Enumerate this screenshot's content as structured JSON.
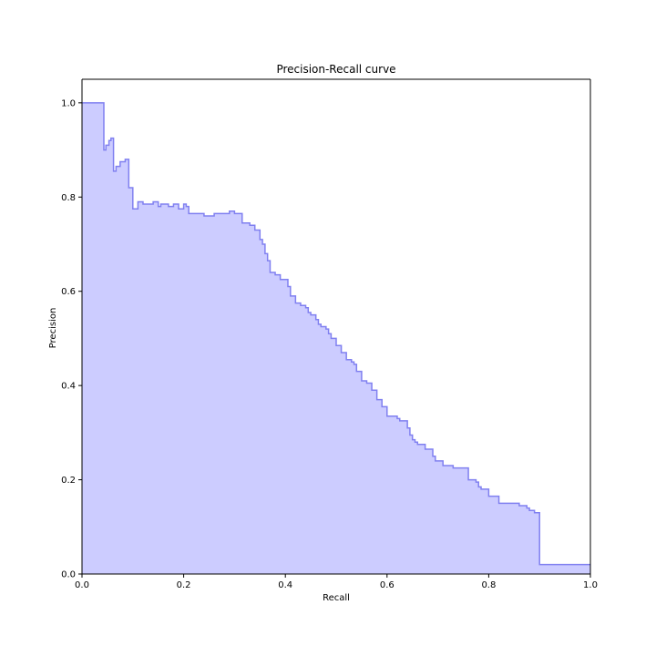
{
  "chart_data": {
    "type": "area",
    "title": "Precision-Recall curve",
    "xlabel": "Recall",
    "ylabel": "Precision",
    "xlim": [
      0.0,
      1.0
    ],
    "ylim": [
      0.0,
      1.05
    ],
    "xticks": [
      0.0,
      0.2,
      0.4,
      0.6,
      0.8,
      1.0
    ],
    "yticks": [
      0.0,
      0.2,
      0.4,
      0.6,
      0.8,
      1.0
    ],
    "xtick_labels": [
      "0.0",
      "0.2",
      "0.4",
      "0.6",
      "0.8",
      "1.0"
    ],
    "ytick_labels": [
      "0.0",
      "0.2",
      "0.4",
      "0.6",
      "0.8",
      "1.0"
    ],
    "grid": false,
    "step": "post",
    "fill_color": "#ccccff",
    "line_color": "#8080f0",
    "series": [
      {
        "recall": [
          0.0,
          0.043,
          0.043,
          0.047,
          0.053,
          0.057,
          0.062,
          0.067,
          0.067,
          0.075,
          0.075,
          0.085,
          0.092,
          0.1,
          0.1,
          0.11,
          0.11,
          0.116,
          0.12,
          0.14,
          0.15,
          0.155,
          0.16,
          0.17,
          0.175,
          0.18,
          0.185,
          0.19,
          0.2,
          0.205,
          0.21,
          0.22,
          0.225,
          0.24,
          0.25,
          0.26,
          0.27,
          0.28,
          0.29,
          0.3,
          0.305,
          0.31,
          0.315,
          0.315,
          0.32,
          0.33,
          0.34,
          0.345,
          0.35,
          0.355,
          0.36,
          0.365,
          0.37,
          0.37,
          0.38,
          0.385,
          0.39,
          0.395,
          0.405,
          0.41,
          0.42,
          0.43,
          0.44,
          0.445,
          0.45,
          0.46,
          0.465,
          0.47,
          0.48,
          0.485,
          0.49,
          0.5,
          0.51,
          0.52,
          0.53,
          0.535,
          0.54,
          0.55,
          0.56,
          0.57,
          0.58,
          0.59,
          0.6,
          0.61,
          0.62,
          0.625,
          0.63,
          0.64,
          0.645,
          0.65,
          0.655,
          0.66,
          0.675,
          0.69,
          0.695,
          0.71,
          0.73,
          0.74,
          0.76,
          0.77,
          0.775,
          0.78,
          0.785,
          0.8,
          0.82,
          0.825,
          0.84,
          0.86,
          0.875,
          0.88,
          0.89,
          0.895,
          0.9,
          0.95,
          1.0
        ],
        "precision": [
          1.0,
          1.0,
          0.9,
          0.91,
          0.92,
          0.925,
          0.855,
          0.865,
          0.865,
          0.875,
          0.875,
          0.88,
          0.82,
          0.82,
          0.775,
          0.78,
          0.79,
          0.79,
          0.785,
          0.79,
          0.78,
          0.785,
          0.785,
          0.78,
          0.78,
          0.785,
          0.785,
          0.775,
          0.785,
          0.78,
          0.765,
          0.765,
          0.765,
          0.76,
          0.76,
          0.765,
          0.765,
          0.765,
          0.77,
          0.765,
          0.765,
          0.765,
          0.745,
          0.745,
          0.745,
          0.74,
          0.73,
          0.73,
          0.71,
          0.7,
          0.68,
          0.665,
          0.64,
          0.64,
          0.635,
          0.635,
          0.625,
          0.625,
          0.61,
          0.59,
          0.575,
          0.57,
          0.565,
          0.555,
          0.55,
          0.54,
          0.53,
          0.525,
          0.52,
          0.51,
          0.5,
          0.485,
          0.47,
          0.455,
          0.45,
          0.445,
          0.43,
          0.41,
          0.405,
          0.39,
          0.37,
          0.355,
          0.335,
          0.335,
          0.33,
          0.325,
          0.325,
          0.31,
          0.295,
          0.285,
          0.28,
          0.275,
          0.265,
          0.25,
          0.24,
          0.23,
          0.225,
          0.225,
          0.2,
          0.2,
          0.195,
          0.185,
          0.18,
          0.165,
          0.15,
          0.15,
          0.15,
          0.145,
          0.14,
          0.135,
          0.13,
          0.13,
          0.02,
          0.02,
          0.02
        ]
      }
    ]
  }
}
